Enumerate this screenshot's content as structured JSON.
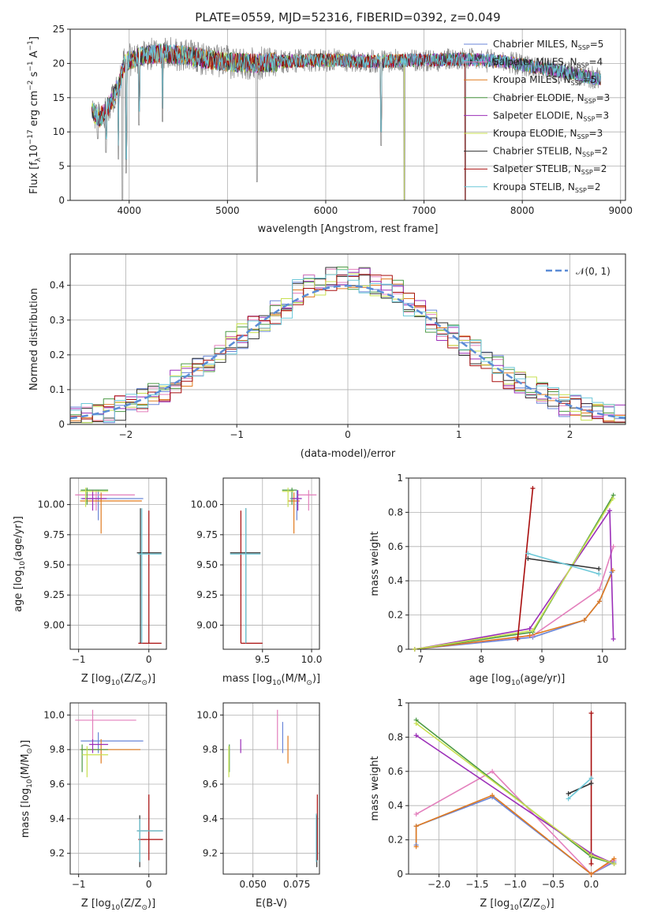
{
  "colors": {
    "chabrier_miles": "#6a86d8",
    "salpeter_miles": "#e37fbc",
    "kroupa_miles": "#e07a1f",
    "chabrier_elodie": "#4c9a45",
    "salpeter_elodie": "#9b2fb8",
    "kroupa_elodie": "#c8e050",
    "chabrier_stelib": "#333333",
    "salpeter_stelib": "#a80d0d",
    "kroupa_stelib": "#6cc8d8",
    "grid": "#b0b0b0",
    "data": "#808080",
    "gauss": "#5b8cd6"
  },
  "chart_data": [
    {
      "id": "spectrum",
      "type": "line",
      "title": "PLATE=0559, MJD=52316, FIBERID=0392, z=0.049",
      "xlabel": "wavelength [Angstrom, rest frame]",
      "ylabel_parts": [
        "Flux [f",
        "λ",
        "10",
        "−17",
        " erg cm",
        "−2",
        " s",
        "−1",
        " A",
        "−1",
        "]"
      ],
      "xlim": [
        3400,
        9050
      ],
      "ylim": [
        0,
        25
      ],
      "xticks": [
        4000,
        5000,
        6000,
        7000,
        8000,
        9000
      ],
      "yticks": [
        0,
        5,
        10,
        15,
        20,
        25
      ],
      "legend": [
        {
          "main": "Chabrier MILES, N",
          "sub": "SSP",
          "tail": "=5",
          "color": "chabrier_miles"
        },
        {
          "main": "Salpeter MILES, N",
          "sub": "SSP",
          "tail": "=4",
          "color": "salpeter_miles"
        },
        {
          "main": "Kroupa MILES, N",
          "sub": "SSP",
          "tail": "=5",
          "color": "kroupa_miles"
        },
        {
          "main": "Chabrier ELODIE, N",
          "sub": "SSP",
          "tail": "=3",
          "color": "chabrier_elodie"
        },
        {
          "main": "Salpeter ELODIE, N",
          "sub": "SSP",
          "tail": "=3",
          "color": "salpeter_elodie"
        },
        {
          "main": "Kroupa ELODIE, N",
          "sub": "SSP",
          "tail": "=3",
          "color": "kroupa_elodie"
        },
        {
          "main": "Chabrier STELIB, N",
          "sub": "SSP",
          "tail": "=2",
          "color": "chabrier_stelib"
        },
        {
          "main": "Salpeter STELIB, N",
          "sub": "SSP",
          "tail": "=2",
          "color": "salpeter_stelib"
        },
        {
          "main": "Kroupa STELIB, N",
          "sub": "SSP",
          "tail": "=2",
          "color": "kroupa_stelib"
        }
      ],
      "legend_placement": "top-right",
      "continuum": [
        [
          3620,
          13
        ],
        [
          3700,
          12
        ],
        [
          3800,
          14
        ],
        [
          3900,
          17
        ],
        [
          3950,
          20
        ],
        [
          4000,
          20.5
        ],
        [
          4100,
          21
        ],
        [
          4300,
          21.5
        ],
        [
          4500,
          21.3
        ],
        [
          4800,
          20.6
        ],
        [
          5000,
          20.2
        ],
        [
          5300,
          20
        ],
        [
          5600,
          20.3
        ],
        [
          6000,
          20.5
        ],
        [
          6500,
          20.3
        ],
        [
          7000,
          20.5
        ],
        [
          7400,
          20.6
        ],
        [
          7800,
          20.3
        ],
        [
          8200,
          19.3
        ],
        [
          8500,
          18.6
        ],
        [
          8800,
          17.6
        ]
      ],
      "dips": [
        [
          3680,
          9
        ],
        [
          3765,
          7
        ],
        [
          3890,
          6
        ],
        [
          3932,
          0
        ],
        [
          3969,
          4
        ],
        [
          4101,
          11
        ],
        [
          4340,
          11.5
        ],
        [
          5300,
          2.7
        ],
        [
          6563,
          8
        ],
        [
          6800,
          0
        ],
        [
          7420,
          0
        ]
      ]
    },
    {
      "id": "residuals",
      "type": "line",
      "xlabel": "(data-model)/error",
      "ylabel": "Normed distribution",
      "xlim": [
        -2.5,
        2.5
      ],
      "ylim": [
        0,
        0.49
      ],
      "xticks": [
        -2,
        -1,
        0,
        1,
        2
      ],
      "yticks": [
        0.0,
        0.1,
        0.2,
        0.3,
        0.4
      ],
      "legend_label": "𝒩(0, 1)",
      "legend_placement": "top-right",
      "bin_width": 0.1
    },
    {
      "id": "age_vs_Z",
      "type": "scatter",
      "xlabel_parts": [
        "Z [log",
        "10",
        "(Z/Z",
        "⊙",
        ")]"
      ],
      "ylabel_parts": [
        "age  [log",
        "10",
        "(age/yr)]"
      ],
      "xlim": [
        -1.12,
        0.25
      ],
      "ylim": [
        8.8,
        10.22
      ],
      "xticks": [
        -1,
        0
      ],
      "yticks": [
        9.0,
        9.25,
        9.5,
        9.75,
        10.0
      ],
      "ytick_labels": [
        "9.00",
        "9.25",
        "9.50",
        "9.75",
        "10.00"
      ],
      "points": [
        {
          "c": "chabrier_miles",
          "x": -0.72,
          "xl": -0.97,
          "xh": -0.08,
          "y": 10.05,
          "yl": 9.87,
          "yh": 10.12
        },
        {
          "c": "salpeter_miles",
          "x": -0.75,
          "xl": -1.05,
          "xh": -0.2,
          "y": 10.08,
          "yl": 9.95,
          "yh": 10.12
        },
        {
          "c": "kroupa_miles",
          "x": -0.68,
          "xl": -0.98,
          "xh": -0.1,
          "y": 10.03,
          "yl": 9.76,
          "yh": 10.1
        },
        {
          "c": "chabrier_elodie",
          "x": -0.88,
          "xl": -0.97,
          "xh": -0.58,
          "y": 10.12,
          "yl": 10.0,
          "yh": 10.14
        },
        {
          "c": "salpeter_elodie",
          "x": -0.8,
          "xl": -0.95,
          "xh": -0.6,
          "y": 10.05,
          "yl": 9.95,
          "yh": 10.12
        },
        {
          "c": "kroupa_elodie",
          "x": -0.9,
          "xl": -0.98,
          "xh": -0.58,
          "y": 10.11,
          "yl": 9.98,
          "yh": 10.14
        },
        {
          "c": "chabrier_stelib",
          "x": -0.12,
          "xl": -0.17,
          "xh": 0.18,
          "y": 9.6,
          "yl": 8.85,
          "yh": 9.97
        },
        {
          "c": "salpeter_stelib",
          "x": 0.0,
          "xl": -0.15,
          "xh": 0.18,
          "y": 8.85,
          "yl": 8.85,
          "yh": 9.95
        },
        {
          "c": "kroupa_stelib",
          "x": -0.1,
          "xl": -0.15,
          "xh": 0.18,
          "y": 9.59,
          "yl": 8.85,
          "yh": 9.97
        }
      ]
    },
    {
      "id": "age_vs_mass",
      "type": "scatter",
      "xlabel_parts": [
        "mass [log",
        "10",
        "(M/M",
        "⊙",
        ")]"
      ],
      "xlim": [
        9.1,
        10.08
      ],
      "ylim": [
        8.8,
        10.22
      ],
      "xticks": [
        9.5,
        10.0
      ],
      "xtick_labels": [
        "9.5",
        "10.0"
      ],
      "yticks": [
        9.0,
        9.25,
        9.5,
        9.75,
        10.0
      ],
      "ytick_labels": [
        "9.00",
        "9.25",
        "9.50",
        "9.75",
        "10.00"
      ],
      "points": [
        {
          "c": "chabrier_miles",
          "x": 9.85,
          "xl": 9.78,
          "xh": 9.9,
          "y": 10.05,
          "yl": 9.87,
          "yh": 10.12
        },
        {
          "c": "salpeter_miles",
          "x": 9.97,
          "xl": 9.85,
          "xh": 10.05,
          "y": 10.08,
          "yl": 9.95,
          "yh": 10.12
        },
        {
          "c": "kroupa_miles",
          "x": 9.82,
          "xl": 9.76,
          "xh": 9.88,
          "y": 10.03,
          "yl": 9.76,
          "yh": 10.1
        },
        {
          "c": "chabrier_elodie",
          "x": 9.8,
          "xl": 9.7,
          "xh": 9.85,
          "y": 10.12,
          "yl": 10.0,
          "yh": 10.14
        },
        {
          "c": "salpeter_elodie",
          "x": 9.86,
          "xl": 9.8,
          "xh": 9.9,
          "y": 10.05,
          "yl": 9.95,
          "yh": 10.12
        },
        {
          "c": "kroupa_elodie",
          "x": 9.76,
          "xl": 9.7,
          "xh": 9.82,
          "y": 10.11,
          "yl": 9.98,
          "yh": 10.14
        },
        {
          "c": "chabrier_stelib",
          "x": 9.33,
          "xl": 9.17,
          "xh": 9.48,
          "y": 9.6,
          "yl": 8.85,
          "yh": 9.97
        },
        {
          "c": "salpeter_stelib",
          "x": 9.28,
          "xl": 9.28,
          "xh": 9.5,
          "y": 8.85,
          "yl": 8.85,
          "yh": 9.95
        },
        {
          "c": "kroupa_stelib",
          "x": 9.33,
          "xl": 9.17,
          "xh": 9.48,
          "y": 9.59,
          "yl": 8.85,
          "yh": 9.97
        }
      ]
    },
    {
      "id": "massweight_vs_age",
      "type": "line",
      "xlabel_parts": [
        "age  [log",
        "10",
        "(age/yr)]"
      ],
      "ylabel": "mass weight",
      "xlim": [
        6.8,
        10.38
      ],
      "ylim": [
        0,
        1.0
      ],
      "xticks": [
        7,
        8,
        9,
        10
      ],
      "yticks": [
        0.0,
        0.2,
        0.4,
        0.6,
        0.8,
        1.0
      ],
      "series": [
        {
          "c": "chabrier_miles",
          "pts": [
            [
              6.9,
              0
            ],
            [
              8.85,
              0.07
            ],
            [
              9.7,
              0.17
            ],
            [
              9.95,
              0.28
            ],
            [
              10.15,
              0.45
            ]
          ]
        },
        {
          "c": "salpeter_miles",
          "pts": [
            [
              6.9,
              0
            ],
            [
              8.85,
              0.08
            ],
            [
              9.95,
              0.35
            ],
            [
              10.18,
              0.6
            ]
          ]
        },
        {
          "c": "kroupa_miles",
          "pts": [
            [
              6.9,
              0
            ],
            [
              8.8,
              0.08
            ],
            [
              9.7,
              0.17
            ],
            [
              9.95,
              0.28
            ],
            [
              10.17,
              0.46
            ]
          ]
        },
        {
          "c": "chabrier_elodie",
          "pts": [
            [
              6.9,
              0
            ],
            [
              8.85,
              0.1
            ],
            [
              10.18,
              0.9
            ]
          ]
        },
        {
          "c": "salpeter_elodie",
          "pts": [
            [
              6.9,
              0
            ],
            [
              8.8,
              0.12
            ],
            [
              10.12,
              0.81
            ],
            [
              10.18,
              0.06
            ]
          ]
        },
        {
          "c": "kroupa_elodie",
          "pts": [
            [
              6.9,
              0
            ],
            [
              8.85,
              0.11
            ],
            [
              10.17,
              0.88
            ]
          ]
        },
        {
          "c": "chabrier_stelib",
          "pts": [
            [
              8.77,
              0.53
            ],
            [
              9.94,
              0.47
            ]
          ]
        },
        {
          "c": "salpeter_stelib",
          "pts": [
            [
              8.6,
              0.06
            ],
            [
              8.85,
              0.94
            ]
          ]
        },
        {
          "c": "kroupa_stelib",
          "pts": [
            [
              8.77,
              0.56
            ],
            [
              9.94,
              0.44
            ]
          ]
        }
      ]
    },
    {
      "id": "mass_vs_Z",
      "type": "scatter",
      "xlabel_parts": [
        "Z [log",
        "10",
        "(Z/Z",
        "⊙",
        ")]"
      ],
      "ylabel_parts": [
        "mass [log",
        "10",
        "(M/M",
        "⊙",
        ")]"
      ],
      "xlim": [
        -1.12,
        0.25
      ],
      "ylim": [
        9.08,
        10.07
      ],
      "xticks": [
        -1,
        0
      ],
      "yticks": [
        9.2,
        9.4,
        9.6,
        9.8,
        10.0
      ],
      "ytick_labels": [
        "9.2",
        "9.4",
        "9.6",
        "9.8",
        "10.0"
      ],
      "points": [
        {
          "c": "chabrier_miles",
          "x": -0.72,
          "xl": -0.97,
          "xh": -0.08,
          "y": 9.85,
          "yl": 9.78,
          "yh": 9.9
        },
        {
          "c": "salpeter_miles",
          "x": -0.8,
          "xl": -1.05,
          "xh": -0.18,
          "y": 9.97,
          "yl": 9.85,
          "yh": 10.03
        },
        {
          "c": "kroupa_miles",
          "x": -0.68,
          "xl": -0.98,
          "xh": -0.12,
          "y": 9.8,
          "yl": 9.72,
          "yh": 9.86
        },
        {
          "c": "chabrier_elodie",
          "x": -0.95,
          "xl": -0.97,
          "xh": -0.58,
          "y": 9.8,
          "yl": 9.67,
          "yh": 9.83
        },
        {
          "c": "salpeter_elodie",
          "x": -0.8,
          "xl": -0.85,
          "xh": -0.58,
          "y": 9.83,
          "yl": 9.78,
          "yh": 9.86
        },
        {
          "c": "kroupa_elodie",
          "x": -0.88,
          "xl": -0.95,
          "xh": -0.58,
          "y": 9.77,
          "yl": 9.64,
          "yh": 9.82
        },
        {
          "c": "chabrier_stelib",
          "x": -0.13,
          "xl": -0.17,
          "xh": 0.2,
          "y": 9.33,
          "yl": 9.12,
          "yh": 9.42
        },
        {
          "c": "salpeter_stelib",
          "x": 0.0,
          "xl": -0.15,
          "xh": 0.2,
          "y": 9.28,
          "yl": 9.16,
          "yh": 9.54
        },
        {
          "c": "kroupa_stelib",
          "x": -0.13,
          "xl": -0.17,
          "xh": 0.2,
          "y": 9.33,
          "yl": 9.15,
          "yh": 9.4
        }
      ]
    },
    {
      "id": "mass_vs_EBV",
      "type": "scatter",
      "xlabel": "E(B-V)",
      "xlim": [
        0.033,
        0.088
      ],
      "ylim": [
        9.08,
        10.07
      ],
      "xticks": [
        0.05,
        0.075
      ],
      "xtick_labels": [
        "0.050",
        "0.075"
      ],
      "yticks": [
        9.2,
        9.4,
        9.6,
        9.8,
        10.0
      ],
      "ytick_labels": [
        "9.2",
        "9.4",
        "9.6",
        "9.8",
        "10.0"
      ],
      "points": [
        {
          "c": "chabrier_miles",
          "x": 0.067,
          "yl": 9.78,
          "yh": 9.96
        },
        {
          "c": "salpeter_miles",
          "x": 0.064,
          "yl": 9.8,
          "yh": 10.03
        },
        {
          "c": "kroupa_miles",
          "x": 0.07,
          "yl": 9.72,
          "yh": 9.88
        },
        {
          "c": "chabrier_elodie",
          "x": 0.0365,
          "yl": 9.67,
          "yh": 9.83
        },
        {
          "c": "salpeter_elodie",
          "x": 0.043,
          "yl": 9.78,
          "yh": 9.86
        },
        {
          "c": "kroupa_elodie",
          "x": 0.0362,
          "yl": 9.64,
          "yh": 9.82
        },
        {
          "c": "chabrier_stelib",
          "x": 0.0865,
          "yl": 9.12,
          "yh": 9.42
        },
        {
          "c": "salpeter_stelib",
          "x": 0.0868,
          "yl": 9.16,
          "yh": 9.54
        },
        {
          "c": "kroupa_stelib",
          "x": 0.0862,
          "yl": 9.15,
          "yh": 9.43
        }
      ]
    },
    {
      "id": "massweight_vs_Z",
      "type": "line",
      "xlabel_parts": [
        "Z [log",
        "10",
        "(Z/Z",
        "⊙",
        ")]"
      ],
      "ylabel": "mass weight",
      "xlim": [
        -2.4,
        0.45
      ],
      "ylim": [
        0,
        1.0
      ],
      "xticks": [
        -2.0,
        -1.5,
        -1.0,
        -0.5,
        0.0
      ],
      "xtick_labels": [
        "−2.0",
        "−1.5",
        "−1.0",
        "−0.5",
        "0.0"
      ],
      "yticks": [
        0.0,
        0.2,
        0.4,
        0.6,
        0.8,
        1.0
      ],
      "series": [
        {
          "c": "chabrier_miles",
          "pts": [
            [
              -2.3,
              0.17
            ],
            [
              -2.3,
              0.28
            ],
            [
              -1.3,
              0.45
            ],
            [
              0.0,
              0.0
            ],
            [
              0.3,
              0.07
            ]
          ]
        },
        {
          "c": "salpeter_miles",
          "pts": [
            [
              -2.3,
              0.35
            ],
            [
              -1.3,
              0.6
            ],
            [
              0.0,
              0.0
            ],
            [
              0.3,
              0.08
            ]
          ]
        },
        {
          "c": "kroupa_miles",
          "pts": [
            [
              -2.3,
              0.16
            ],
            [
              -2.3,
              0.28
            ],
            [
              -1.3,
              0.46
            ],
            [
              0.0,
              0.0
            ],
            [
              0.3,
              0.09
            ]
          ]
        },
        {
          "c": "chabrier_elodie",
          "pts": [
            [
              -2.3,
              0.9
            ],
            [
              0.0,
              0.1
            ],
            [
              0.3,
              0.06
            ]
          ]
        },
        {
          "c": "salpeter_elodie",
          "pts": [
            [
              -2.3,
              0.81
            ],
            [
              0.0,
              0.12
            ],
            [
              0.3,
              0.06
            ]
          ]
        },
        {
          "c": "kroupa_elodie",
          "pts": [
            [
              -2.3,
              0.88
            ],
            [
              0.0,
              0.11
            ],
            [
              0.3,
              0.06
            ]
          ]
        },
        {
          "c": "chabrier_stelib",
          "pts": [
            [
              -0.3,
              0.47
            ],
            [
              0.0,
              0.53
            ]
          ]
        },
        {
          "c": "salpeter_stelib",
          "pts": [
            [
              0.0,
              0.06
            ],
            [
              0.0,
              0.94
            ]
          ]
        },
        {
          "c": "kroupa_stelib",
          "pts": [
            [
              -0.3,
              0.44
            ],
            [
              0.0,
              0.56
            ]
          ]
        }
      ]
    }
  ]
}
